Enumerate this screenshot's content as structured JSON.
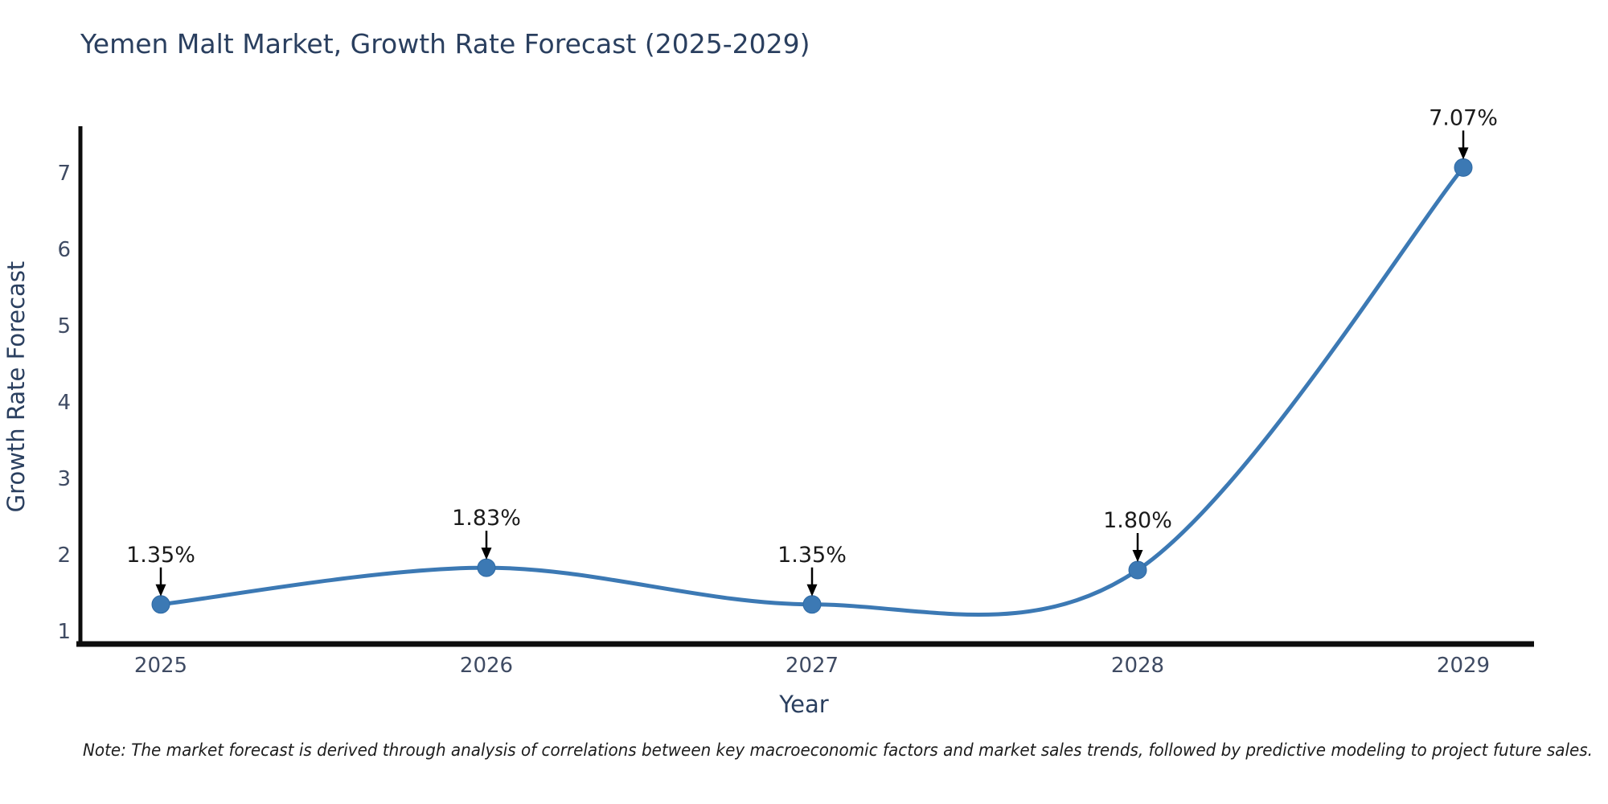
{
  "title": "Yemen Malt Market, Growth Rate Forecast (2025-2029)",
  "note": "Note: The market forecast is derived through analysis of correlations between key macroeconomic factors and market sales trends, followed by predictive modeling to project future sales.",
  "chart_data": {
    "type": "line",
    "line_shape": "spline",
    "x": [
      "2025",
      "2026",
      "2027",
      "2028",
      "2029"
    ],
    "values": [
      1.35,
      1.83,
      1.35,
      1.8,
      7.07
    ],
    "point_labels": [
      "1.35%",
      "1.83%",
      "1.35%",
      "1.80%",
      "7.07%"
    ],
    "title": "Yemen Malt Market, Growth Rate Forecast (2025-2029)",
    "xlabel": "Year",
    "ylabel": "Growth Rate Forecast",
    "yticks": [
      1,
      2,
      3,
      4,
      5,
      6,
      7
    ],
    "ylim": [
      0.83,
      7.6
    ],
    "grid": false,
    "legend": "none",
    "annotations": "value labels with black down-arrows above each data point",
    "colors": {
      "line": "#3c79b4",
      "marker": "#3c79b4",
      "marker_edge": "#2e6aa5",
      "axis": "#0d0d0d",
      "text": "#2a3f5f",
      "tick_text": "#3f4b63",
      "annotation": "#000000",
      "background": "#ffffff"
    }
  }
}
